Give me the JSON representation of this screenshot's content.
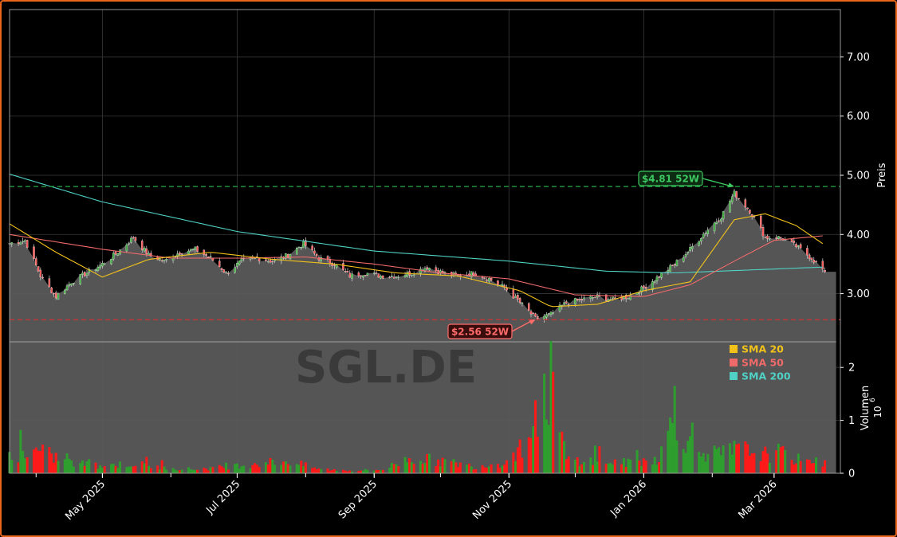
{
  "colors": {
    "background": "#000000",
    "frame_border": "#e8651c",
    "candle_up": "#2e9e2e",
    "candle_down": "#ff1a1a",
    "sma20": "#f2c21b",
    "sma50": "#f06a6a",
    "sma200": "#4fd1c5",
    "high_line": "#22aa44",
    "low_line": "#cc3333",
    "area_fill": "#5a5a5a",
    "grid": "#3a3a3a",
    "text": "#ffffff"
  },
  "chart_data": {
    "type": "candlestick",
    "watermark": "SGL.DE",
    "price_axis": {
      "label": "Preis",
      "range": [
        2.2,
        7.8
      ],
      "ticks": [
        "3.00",
        "4.00",
        "5.00",
        "6.00",
        "7.00"
      ]
    },
    "volume_axis": {
      "label": "Volumen",
      "exponent_label": "10",
      "exponent": "6",
      "range": [
        0,
        2.5
      ],
      "ticks": [
        "0",
        "1",
        "2"
      ]
    },
    "x_axis": {
      "start": "2025-03-20",
      "end": "2026-03-31",
      "ticks": [
        {
          "date": "2025-05-01",
          "label": "May 2025"
        },
        {
          "date": "2025-07-01",
          "label": "Jul 2025"
        },
        {
          "date": "2025-09-01",
          "label": "Sep 2025"
        },
        {
          "date": "2025-11-01",
          "label": "Nov 2025"
        },
        {
          "date": "2026-01-01",
          "label": "Jan 2026"
        },
        {
          "date": "2026-03-01",
          "label": "Mar 2026"
        }
      ]
    },
    "legend": {
      "placement": "inside volume panel, top-right",
      "items": [
        {
          "label": "SMA 20",
          "color": "#f2c21b"
        },
        {
          "label": "SMA 50",
          "color": "#f06a6a"
        },
        {
          "label": "SMA 200",
          "color": "#4fd1c5"
        }
      ]
    },
    "annotations": {
      "high": {
        "label": "$4.81 52W",
        "value": 4.81,
        "date": "2026-02-11"
      },
      "low": {
        "label": "$2.56 52W",
        "value": 2.56,
        "date": "2025-11-13"
      }
    },
    "last_close": 3.37,
    "close_series": {
      "dates": [
        "2025-03-20",
        "2025-03-27",
        "2025-04-03",
        "2025-04-10",
        "2025-04-17",
        "2025-04-24",
        "2025-05-01",
        "2025-05-08",
        "2025-05-15",
        "2025-05-22",
        "2025-05-29",
        "2025-06-05",
        "2025-06-12",
        "2025-06-19",
        "2025-06-26",
        "2025-07-03",
        "2025-07-10",
        "2025-07-17",
        "2025-07-24",
        "2025-07-31",
        "2025-08-07",
        "2025-08-14",
        "2025-08-21",
        "2025-08-28",
        "2025-09-04",
        "2025-09-11",
        "2025-09-18",
        "2025-09-25",
        "2025-10-02",
        "2025-10-09",
        "2025-10-16",
        "2025-10-23",
        "2025-10-30",
        "2025-11-06",
        "2025-11-13",
        "2025-11-20",
        "2025-11-27",
        "2025-12-04",
        "2025-12-11",
        "2025-12-18",
        "2025-12-25",
        "2026-01-01",
        "2026-01-08",
        "2026-01-15",
        "2026-01-22",
        "2026-01-29",
        "2026-02-05",
        "2026-02-11",
        "2026-02-18",
        "2026-02-25",
        "2026-03-04",
        "2026-03-11",
        "2026-03-18",
        "2026-03-24"
      ],
      "values": [
        3.85,
        3.9,
        3.3,
        2.95,
        3.2,
        3.35,
        3.5,
        3.7,
        3.95,
        3.65,
        3.55,
        3.7,
        3.75,
        3.6,
        3.35,
        3.55,
        3.6,
        3.55,
        3.65,
        3.85,
        3.6,
        3.5,
        3.3,
        3.35,
        3.3,
        3.3,
        3.35,
        3.45,
        3.35,
        3.3,
        3.35,
        3.25,
        3.1,
        2.85,
        2.58,
        2.65,
        2.85,
        2.9,
        2.95,
        2.9,
        2.95,
        3.1,
        3.3,
        3.5,
        3.75,
        4.05,
        4.3,
        4.7,
        4.4,
        3.95,
        3.95,
        3.8,
        3.6,
        3.37
      ]
    },
    "sma20": {
      "dates": [
        "2025-03-20",
        "2025-04-10",
        "2025-05-01",
        "2025-05-22",
        "2025-06-19",
        "2025-07-17",
        "2025-08-14",
        "2025-09-11",
        "2025-10-09",
        "2025-11-06",
        "2025-11-20",
        "2025-12-11",
        "2026-01-01",
        "2026-01-22",
        "2026-02-11",
        "2026-02-25",
        "2026-03-11",
        "2026-03-24"
      ],
      "values": [
        4.18,
        3.7,
        3.28,
        3.58,
        3.7,
        3.58,
        3.5,
        3.35,
        3.3,
        3.05,
        2.78,
        2.82,
        3.05,
        3.2,
        4.25,
        4.35,
        4.15,
        3.82
      ]
    },
    "sma50": {
      "dates": [
        "2025-03-20",
        "2025-05-01",
        "2025-06-01",
        "2025-07-01",
        "2025-08-01",
        "2025-09-01",
        "2025-10-01",
        "2025-11-01",
        "2025-12-01",
        "2026-01-01",
        "2026-01-22",
        "2026-02-11",
        "2026-03-01",
        "2026-03-24"
      ],
      "values": [
        4.0,
        3.75,
        3.6,
        3.6,
        3.62,
        3.5,
        3.35,
        3.25,
        2.98,
        2.95,
        3.15,
        3.55,
        3.9,
        3.98
      ]
    },
    "sma200": {
      "dates": [
        "2025-03-20",
        "2025-05-01",
        "2025-07-01",
        "2025-09-01",
        "2025-11-01",
        "2025-12-15",
        "2026-01-15",
        "2026-03-24"
      ],
      "values": [
        5.02,
        4.55,
        4.05,
        3.72,
        3.55,
        3.38,
        3.35,
        3.45
      ]
    },
    "volume": {
      "dates": [
        "2025-03-20",
        "2025-04-03",
        "2025-04-17",
        "2025-05-01",
        "2025-05-15",
        "2025-05-29",
        "2025-06-12",
        "2025-06-26",
        "2025-07-10",
        "2025-07-24",
        "2025-08-07",
        "2025-08-21",
        "2025-09-04",
        "2025-09-18",
        "2025-10-02",
        "2025-10-16",
        "2025-10-30",
        "2025-11-06",
        "2025-11-13",
        "2025-11-20",
        "2025-11-27",
        "2025-12-11",
        "2025-12-25",
        "2026-01-08",
        "2026-01-15",
        "2026-01-22",
        "2026-01-29",
        "2026-02-05",
        "2026-02-11",
        "2026-02-18",
        "2026-02-25",
        "2026-03-04",
        "2026-03-11",
        "2026-03-24"
      ],
      "values": [
        0.55,
        0.62,
        0.3,
        0.22,
        0.28,
        0.15,
        0.12,
        0.18,
        0.3,
        0.35,
        0.12,
        0.08,
        0.1,
        0.45,
        0.35,
        0.2,
        0.3,
        0.65,
        1.38,
        2.5,
        0.4,
        0.35,
        0.3,
        0.45,
        1.65,
        0.8,
        0.6,
        0.55,
        0.7,
        0.65,
        0.55,
        0.6,
        0.4,
        0.3
      ]
    }
  }
}
